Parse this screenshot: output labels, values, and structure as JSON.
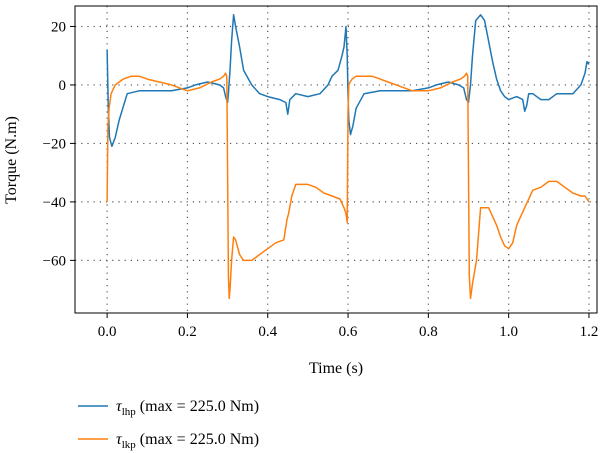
{
  "chart_data": {
    "type": "line",
    "xlabel": "Time (s)",
    "ylabel": "Torque (N.m)",
    "xlim": [
      -0.08,
      1.22
    ],
    "ylim": [
      -78,
      27
    ],
    "xticks": [
      0.0,
      0.2,
      0.4,
      0.6,
      0.8,
      1.0,
      1.2
    ],
    "xtick_labels": [
      "0.0",
      "0.2",
      "0.4",
      "0.6",
      "0.8",
      "1.0",
      "1.2"
    ],
    "yticks": [
      20,
      0,
      -20,
      -40,
      -60
    ],
    "ytick_labels": [
      "20",
      "0",
      "−20",
      "−40",
      "−60"
    ],
    "grid": true,
    "legend_position": "bottom-left",
    "series": [
      {
        "name": "τlhp (max = 225.0 Nm)",
        "legend_symbol": "τ",
        "legend_sub": "lhp",
        "legend_rest": " (max = 225.0 Nm)",
        "color": "#1f77b4",
        "x": [
          0.0,
          0.003,
          0.006,
          0.012,
          0.02,
          0.03,
          0.05,
          0.08,
          0.12,
          0.16,
          0.2,
          0.22,
          0.25,
          0.28,
          0.29,
          0.295,
          0.3,
          0.302,
          0.306,
          0.31,
          0.315,
          0.32,
          0.33,
          0.34,
          0.36,
          0.38,
          0.4,
          0.43,
          0.445,
          0.45,
          0.455,
          0.47,
          0.5,
          0.53,
          0.55,
          0.56,
          0.575,
          0.585,
          0.59,
          0.595,
          0.598,
          0.6,
          0.602,
          0.606,
          0.612,
          0.62,
          0.64,
          0.68,
          0.72,
          0.76,
          0.8,
          0.82,
          0.85,
          0.875,
          0.888,
          0.895,
          0.9,
          0.905,
          0.91,
          0.918,
          0.93,
          0.94,
          0.95,
          0.96,
          0.97,
          0.98,
          0.99,
          1.0,
          1.02,
          1.035,
          1.04,
          1.045,
          1.05,
          1.06,
          1.08,
          1.1,
          1.12,
          1.14,
          1.16,
          1.18,
          1.19,
          1.195,
          1.2
        ],
        "y": [
          12,
          -8,
          -18,
          -21,
          -18,
          -12,
          -3,
          -2,
          -2,
          -2,
          -1,
          0,
          1,
          0,
          -1,
          -4,
          -6,
          -3,
          5,
          15,
          24,
          20,
          13,
          5,
          0,
          -3,
          -4,
          -5,
          -6,
          -10,
          -5,
          -3,
          -4,
          -3,
          0,
          3,
          5,
          10,
          13,
          20,
          10,
          -3,
          -12,
          -17,
          -14,
          -8,
          -3,
          -2,
          -2,
          -2,
          -1,
          0,
          1,
          0,
          -1,
          -5,
          -6,
          0,
          10,
          22,
          24,
          22,
          15,
          8,
          2,
          -2,
          -4,
          -5,
          -4,
          -5,
          -9,
          -7,
          -3,
          -3,
          -5,
          -5,
          -3,
          -3,
          -3,
          0,
          4,
          8,
          7
        ]
      },
      {
        "name": "τlkp (max = 225.0 Nm)",
        "legend_symbol": "τ",
        "legend_sub": "lkp",
        "legend_rest": " (max = 225.0 Nm)",
        "color": "#ff7f0e",
        "x": [
          0.0,
          0.002,
          0.005,
          0.01,
          0.02,
          0.04,
          0.06,
          0.08,
          0.1,
          0.13,
          0.16,
          0.2,
          0.23,
          0.26,
          0.28,
          0.29,
          0.295,
          0.298,
          0.3,
          0.302,
          0.304,
          0.306,
          0.31,
          0.315,
          0.32,
          0.33,
          0.34,
          0.36,
          0.38,
          0.4,
          0.42,
          0.44,
          0.448,
          0.452,
          0.46,
          0.47,
          0.48,
          0.5,
          0.52,
          0.54,
          0.56,
          0.58,
          0.59,
          0.595,
          0.598,
          0.6,
          0.602,
          0.605,
          0.61,
          0.62,
          0.64,
          0.66,
          0.68,
          0.7,
          0.72,
          0.76,
          0.8,
          0.83,
          0.86,
          0.88,
          0.89,
          0.895,
          0.898,
          0.9,
          0.902,
          0.905,
          0.91,
          0.92,
          0.93,
          0.94,
          0.95,
          0.96,
          0.97,
          0.98,
          0.99,
          1.0,
          1.01,
          1.02,
          1.04,
          1.06,
          1.08,
          1.1,
          1.12,
          1.14,
          1.16,
          1.18,
          1.19,
          1.2
        ],
        "y": [
          -40,
          -14,
          -8,
          -3,
          0,
          2,
          3,
          3,
          2,
          1,
          0,
          -2,
          -1,
          1,
          2,
          3,
          4,
          3,
          -30,
          -65,
          -73,
          -70,
          -60,
          -52,
          -53,
          -58,
          -60,
          -60,
          -58,
          -56,
          -54,
          -53,
          -46,
          -44,
          -38,
          -34,
          -34,
          -34,
          -35,
          -37,
          -38,
          -39,
          -42,
          -44,
          -47,
          -10,
          0,
          1,
          2,
          3,
          3,
          3,
          2,
          1,
          0,
          -2,
          -2,
          -1,
          1,
          2,
          3,
          4,
          3,
          -30,
          -65,
          -73,
          -68,
          -60,
          -42,
          -42,
          -42,
          -45,
          -48,
          -52,
          -55,
          -56,
          -54,
          -48,
          -42,
          -36,
          -35,
          -33,
          -33,
          -35,
          -37,
          -38,
          -38,
          -40
        ]
      }
    ]
  }
}
